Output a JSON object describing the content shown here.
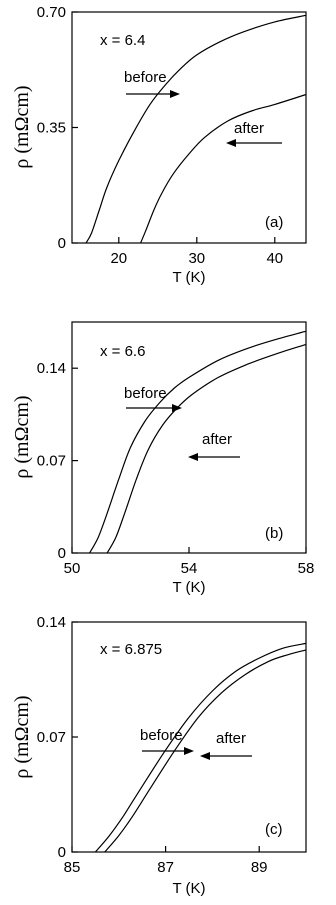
{
  "chart_data": [
    {
      "type": "line",
      "panel_label": "(a)",
      "composition": "x = 6.4",
      "xlabel": "T (K)",
      "ylabel": "ρ (mΩcm)",
      "xlim": [
        14,
        44
      ],
      "ylim": [
        0,
        0.7
      ],
      "xticks": [
        20,
        30,
        40
      ],
      "yticks": [
        "0",
        "0.35",
        "0.70"
      ],
      "grid": false,
      "series": [
        {
          "name": "before",
          "x": [
            15.8,
            16.5,
            17.5,
            18.5,
            20,
            22,
            24,
            26,
            28,
            30,
            33,
            36,
            40,
            44
          ],
          "y": [
            0,
            0.03,
            0.1,
            0.17,
            0.25,
            0.34,
            0.42,
            0.48,
            0.53,
            0.57,
            0.61,
            0.64,
            0.67,
            0.69
          ]
        },
        {
          "name": "after",
          "x": [
            22.8,
            23.5,
            24.5,
            25.5,
            27,
            29,
            31,
            34,
            37,
            40,
            44
          ],
          "y": [
            0,
            0.04,
            0.1,
            0.15,
            0.21,
            0.27,
            0.32,
            0.37,
            0.4,
            0.42,
            0.45
          ]
        }
      ],
      "annotations": [
        {
          "text": "before",
          "target_series": "before"
        },
        {
          "text": "after",
          "target_series": "after"
        }
      ]
    },
    {
      "type": "line",
      "panel_label": "(b)",
      "composition": "x = 6.6",
      "xlabel": "T (K)",
      "ylabel": "ρ (mΩcm)",
      "xlim": [
        50,
        58
      ],
      "ylim": [
        0,
        0.175
      ],
      "xticks": [
        50,
        54,
        58
      ],
      "yticks": [
        "0",
        "0.07",
        "0.14"
      ],
      "grid": false,
      "series": [
        {
          "name": "before",
          "x": [
            50.6,
            50.9,
            51.2,
            51.6,
            52.0,
            52.5,
            53.0,
            53.5,
            54.0,
            55.0,
            56.0,
            57.0,
            58.0
          ],
          "y": [
            0,
            0.012,
            0.03,
            0.056,
            0.08,
            0.1,
            0.114,
            0.125,
            0.133,
            0.146,
            0.155,
            0.162,
            0.168
          ]
        },
        {
          "name": "after",
          "x": [
            51.2,
            51.5,
            51.8,
            52.2,
            52.6,
            53.1,
            53.6,
            54.1,
            55.0,
            56.0,
            57.0,
            58.0
          ],
          "y": [
            0,
            0.012,
            0.03,
            0.056,
            0.078,
            0.097,
            0.11,
            0.12,
            0.133,
            0.143,
            0.151,
            0.158
          ]
        }
      ],
      "annotations": [
        {
          "text": "before",
          "target_series": "before"
        },
        {
          "text": "after",
          "target_series": "after"
        }
      ]
    },
    {
      "type": "line",
      "panel_label": "(c)",
      "composition": "x = 6.875",
      "xlabel": "T (K)",
      "ylabel": "ρ (mΩcm)",
      "xlim": [
        85,
        90
      ],
      "ylim": [
        0,
        0.14
      ],
      "xticks": [
        85,
        87,
        89
      ],
      "yticks": [
        "0",
        "0.07",
        "0.14"
      ],
      "grid": false,
      "series": [
        {
          "name": "before",
          "x": [
            85.5,
            85.8,
            86.1,
            86.5,
            87.0,
            87.5,
            88.0,
            88.5,
            89.0,
            89.5,
            90.0
          ],
          "y": [
            0,
            0.01,
            0.022,
            0.04,
            0.062,
            0.082,
            0.098,
            0.11,
            0.118,
            0.124,
            0.127
          ]
        },
        {
          "name": "after",
          "x": [
            85.7,
            86.0,
            86.3,
            86.7,
            87.2,
            87.7,
            88.2,
            88.7,
            89.2,
            89.6,
            90.0
          ],
          "y": [
            0,
            0.01,
            0.022,
            0.04,
            0.062,
            0.082,
            0.097,
            0.108,
            0.116,
            0.12,
            0.123
          ]
        }
      ],
      "annotations": [
        {
          "text": "before",
          "target_series": "before"
        },
        {
          "text": "after",
          "target_series": "after"
        }
      ]
    }
  ]
}
